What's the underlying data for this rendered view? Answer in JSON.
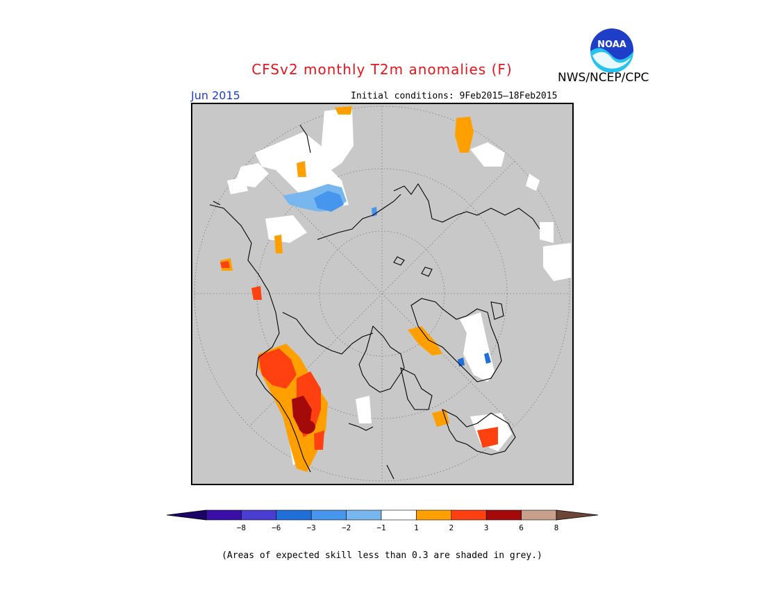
{
  "header": {
    "title": "CFSv2 monthly T2m anomalies (F)",
    "org": "NWS/NCEP/CPC",
    "logo_text": "NOAA",
    "period": "Jun 2015",
    "initial_conditions": "Initial conditions: 9Feb2015–18Feb2015"
  },
  "colorbar": {
    "tick_labels": [
      "−8",
      "−6",
      "−3",
      "−2",
      "−1",
      "1",
      "2",
      "3",
      "6",
      "8"
    ],
    "colors": [
      "#3a0fa8",
      "#4a3ed2",
      "#1f6fd8",
      "#4596ec",
      "#78b6f0",
      "#ffffff",
      "#ffa000",
      "#ff4010",
      "#a50a0a",
      "#c8a08c"
    ],
    "low_arrow_color": "#1c0466",
    "high_arrow_color": "#6e4637"
  },
  "footnote": "(Areas of expected skill less than 0.3 are shaded in grey.)",
  "colors": {
    "skill_mask_grey": "#c8c8c8",
    "title_red": "#e8141c",
    "period_blue": "#1c3cd8"
  }
}
